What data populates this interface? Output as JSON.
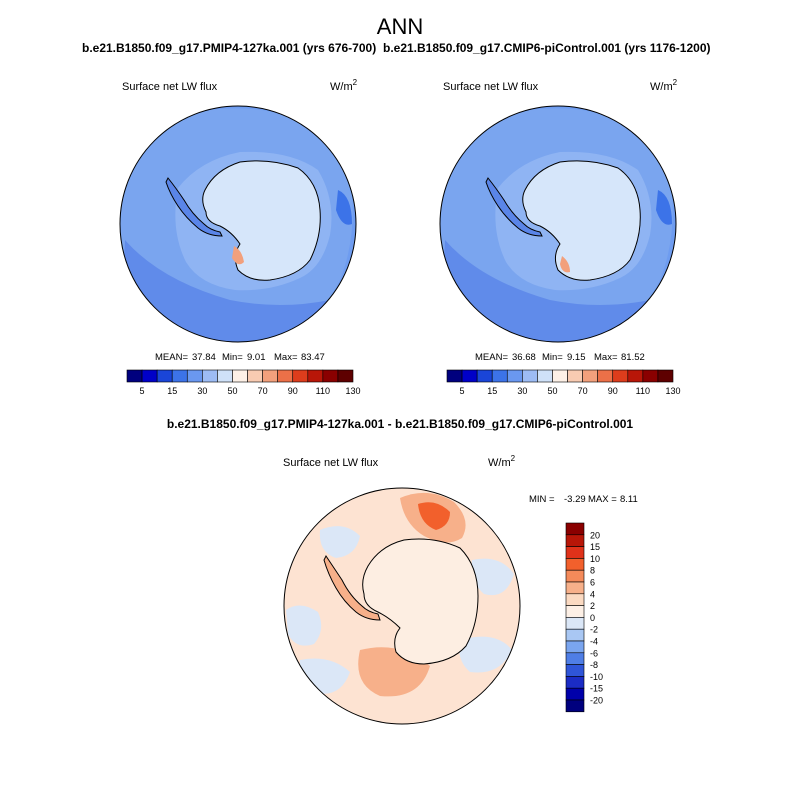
{
  "page_title": "ANN",
  "chart_data": [
    {
      "type": "polar-contour-map",
      "projection": "south-polar-stereographic",
      "case_label": "b.e21.B1850.f09_g17.PMIP4-127ka.001 (yrs 676-700)",
      "variable": "Surface net LW flux",
      "units": "W/m",
      "units_exp": "2",
      "stats": {
        "mean_label": "MEAN=",
        "mean": "37.84",
        "min_label": "Min=",
        "min": "9.01",
        "max_label": "Max=",
        "max": "83.47"
      },
      "colorbar_levels": [
        "5",
        "15",
        "30",
        "50",
        "70",
        "90",
        "110",
        "130"
      ]
    },
    {
      "type": "polar-contour-map",
      "projection": "south-polar-stereographic",
      "case_label": "b.e21.B1850.f09_g17.CMIP6-piControl.001 (yrs 1176-1200)",
      "variable": "Surface net LW flux",
      "units": "W/m",
      "units_exp": "2",
      "stats": {
        "mean_label": "MEAN=",
        "mean": "36.68",
        "min_label": "Min=",
        "min": "9.15",
        "max_label": "Max=",
        "max": "81.52"
      },
      "colorbar_levels": [
        "5",
        "15",
        "30",
        "50",
        "70",
        "90",
        "110",
        "130"
      ]
    },
    {
      "type": "polar-contour-map-difference",
      "projection": "south-polar-stereographic",
      "case_label": "b.e21.B1850.f09_g17.PMIP4-127ka.001 - b.e21.B1850.f09_g17.CMIP6-piControl.001",
      "variable": "Surface net LW flux",
      "units": "W/m",
      "units_exp": "2",
      "stats": {
        "min_label": "MIN =",
        "min": "-3.29",
        "max_label": "MAX =",
        "max": "8.11"
      },
      "colorbar_levels": [
        "20",
        "15",
        "10",
        "8",
        "6",
        "4",
        "2",
        "0",
        "-2",
        "-4",
        "-6",
        "-8",
        "-10",
        "-15",
        "-20"
      ]
    }
  ],
  "colors": {
    "abs_scale": [
      "#00007e",
      "#0000c8",
      "#1a45d8",
      "#3c73e8",
      "#6a98f0",
      "#9dbcf4",
      "#cfe1f8",
      "#fdf0e6",
      "#f8cbb2",
      "#f2a07c",
      "#ec7048",
      "#dd3d1c",
      "#b81608",
      "#8a0000",
      "#5e0000"
    ],
    "diff_scale": [
      "#8a0000",
      "#b81608",
      "#e0321a",
      "#f2602c",
      "#f48a5a",
      "#f7b08a",
      "#fbdac2",
      "#fdf0e6",
      "#dbe7f7",
      "#a9c7f3",
      "#7aa5ef",
      "#4f7ee6",
      "#2f55d8",
      "#1b2cc5",
      "#0000aa",
      "#00007e"
    ],
    "abs_ocean": "#6e9cf0",
    "abs_inner": "#8fb4f3",
    "abs_land": "#d6e6fa",
    "diff_ocean": "#fde3d2",
    "diff_land": "#fdeee2"
  }
}
